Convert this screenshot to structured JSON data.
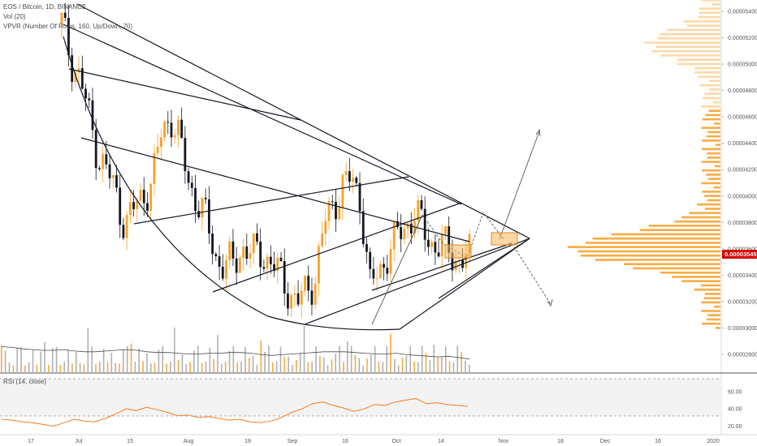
{
  "header": {
    "title": "EOS / Bitcoin, 1D, BINANCE",
    "vol": "Vol (20)",
    "vpvr": "VPVR (Number Of Rows, 160, Up/Down, 70)",
    "rsi": "RSI (14, close)"
  },
  "colors": {
    "up": "#f7a129",
    "down": "#131722",
    "line": "#131722",
    "rsi": "#f57c1f",
    "price_tag": "#d60000",
    "box_fill": "#f7b65e",
    "volume_profile": "#f7a129"
  },
  "chart_data": [
    {
      "type": "candlestick",
      "title": "EOS / Bitcoin, 1D, BINANCE",
      "ylim": [
        2.7e-05,
        5.5e-05
      ],
      "y_ticks": [
        "0.00005400",
        "0.00005200",
        "0.00005000",
        "0.00004800",
        "0.00004600",
        "0.00004400",
        "0.00004200",
        "0.00004000",
        "0.00003800",
        "0.00003600",
        "0.00003400",
        "0.00003200",
        "0.00003000",
        "0.00002800"
      ],
      "x_ticks": [
        "17",
        "Jul",
        "15",
        "Aug",
        "19",
        "Sep",
        "16",
        "Oct",
        "14",
        "Nov",
        "18",
        "Dec",
        "16",
        "2020"
      ],
      "last_price": "0.00003545",
      "close_path": [
        5.3e-05,
        5.05e-05,
        4.9e-05,
        4.6e-05,
        4.32e-05,
        4.18e-05,
        4.02e-05,
        3.78e-05,
        3.9e-05,
        4.02e-05,
        4.1e-05,
        4.48e-05,
        4.62e-05,
        4.4e-05,
        4.12e-05,
        3.95e-05,
        3.8e-05,
        3.55e-05,
        3.45e-05,
        3.5e-05,
        3.62e-05,
        3.55e-05,
        3.58e-05,
        3.5e-05,
        3.4e-05,
        3.3e-05,
        3.18e-05,
        3.28e-05,
        3.4e-05,
        3.78e-05,
        3.95e-05,
        4.08e-05,
        4.12e-05,
        3.98e-05,
        3.3e-05,
        3.42e-05,
        3.58e-05,
        3.68e-05,
        3.78e-05,
        3.88e-05,
        3.72e-05,
        3.64e-05,
        3.62e-05,
        3.56e-05,
        3.52e-05,
        3.54e-05
      ]
    },
    {
      "type": "bar",
      "title": "Vol (20)",
      "ma_path": [
        0.35,
        0.34,
        0.32,
        0.31,
        0.3,
        0.3,
        0.31,
        0.29,
        0.28,
        0.28,
        0.29,
        0.3,
        0.31,
        0.3,
        0.28,
        0.27,
        0.27,
        0.26,
        0.25,
        0.25,
        0.26,
        0.26,
        0.27,
        0.27,
        0.26,
        0.24,
        0.23,
        0.24,
        0.25,
        0.26,
        0.27,
        0.28,
        0.28,
        0.28,
        0.27,
        0.26,
        0.25,
        0.25,
        0.26,
        0.24,
        0.23,
        0.22,
        0.21,
        0.22,
        0.2,
        0.18
      ]
    },
    {
      "type": "line",
      "title": "RSI (14, close)",
      "ylim": [
        14,
        72
      ],
      "y_ticks": [
        "60.00",
        "40.00",
        "20.00"
      ],
      "reference_levels": [
        70,
        30
      ],
      "values": [
        28,
        27,
        25,
        24,
        22,
        20,
        24,
        28,
        26,
        25,
        29,
        34,
        40,
        38,
        42,
        39,
        36,
        32,
        33,
        30,
        31,
        29,
        27,
        28,
        25,
        24,
        26,
        30,
        36,
        40,
        46,
        48,
        44,
        41,
        37,
        40,
        45,
        44,
        48,
        50,
        52,
        46,
        47,
        45,
        44,
        43
      ]
    }
  ]
}
